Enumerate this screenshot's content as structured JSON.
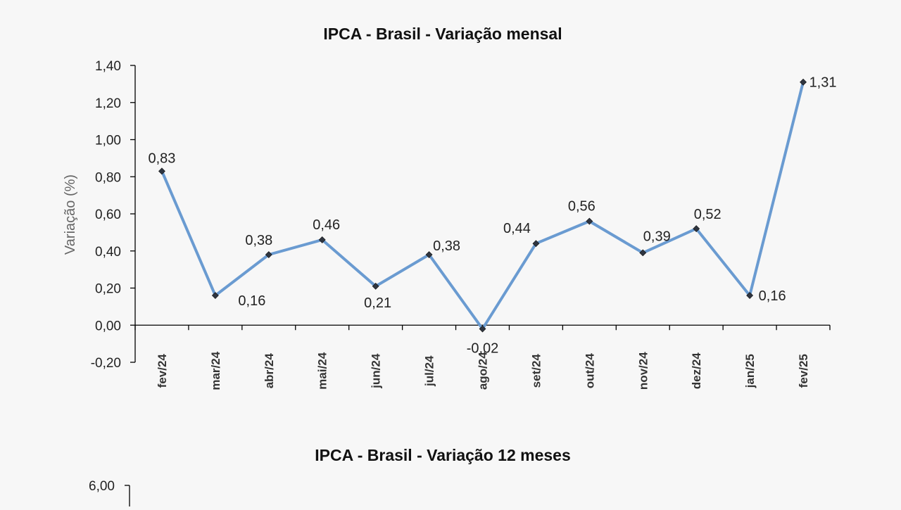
{
  "chart_data": [
    {
      "type": "line",
      "title": "IPCA - Brasil - Variação mensal",
      "ylabel": "Variação (%)",
      "xlabel": "",
      "ylim": [
        -0.2,
        1.4
      ],
      "yticks": [
        "-0,20",
        "0,00",
        "0,20",
        "0,40",
        "0,60",
        "0,80",
        "1,00",
        "1,20",
        "1,40"
      ],
      "categories": [
        "fev/24",
        "mar/24",
        "abr/24",
        "mai/24",
        "jun/24",
        "jul/24",
        "ago/24",
        "set/24",
        "out/24",
        "nov/24",
        "dez/24",
        "jan/25",
        "fev/25"
      ],
      "series": [
        {
          "values": [
            0.83,
            0.16,
            0.38,
            0.46,
            0.21,
            0.38,
            -0.02,
            0.44,
            0.56,
            0.39,
            0.52,
            0.16,
            1.31
          ],
          "labels": [
            "0,83",
            "0,16",
            "0,38",
            "0,46",
            "0,21",
            "0,38",
            "-0,02",
            "0,44",
            "0,56",
            "0,39",
            "0,52",
            "0,16",
            "1,31"
          ],
          "color": "#6a9bd1"
        }
      ],
      "grid": false,
      "legend": "none"
    },
    {
      "type": "line",
      "title": "IPCA - Brasil - Variação 12 meses",
      "yticks_visible": [
        "6,00"
      ],
      "note": ""
    }
  ]
}
